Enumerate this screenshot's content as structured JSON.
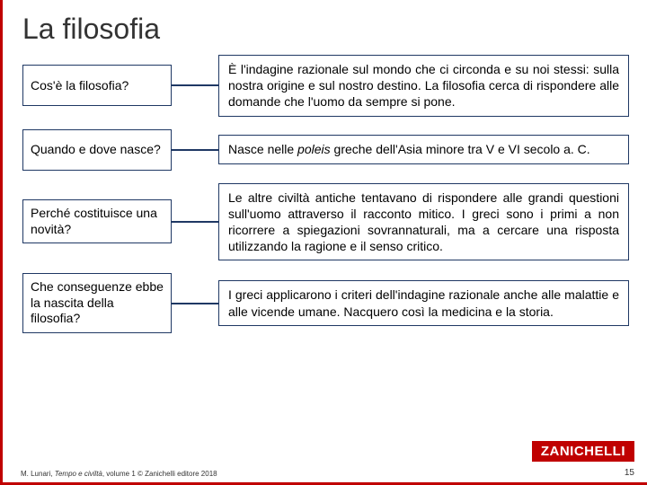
{
  "title": "La filosofia",
  "rows": [
    {
      "q": "Cos'è la filosofia?",
      "a": "È l'indagine razionale sul mondo che ci circonda e su noi stessi: sulla nostra origine e sul nostro destino. La filosofia cerca di rispondere alle domande che l'uomo da sempre si pone."
    },
    {
      "q": "Quando e dove nasce?",
      "a": "Nasce nelle <em>poleis</em> greche dell'Asia minore tra V e VI secolo a. C."
    },
    {
      "q": "Perché costituisce una novità?",
      "a": "Le altre civiltà antiche tentavano di rispondere alle grandi questioni sull'uomo attraverso il racconto mitico. I greci sono i primi a non ricorrere a spiegazioni sovrannaturali, ma a cercare una risposta utilizzando la ragione e il senso critico."
    },
    {
      "q": "Che conseguenze ebbe la nascita della filosofia?",
      "a": "I greci applicarono i criteri dell'indagine razionale anche alle malattie e alle vicende umane. Nacquero così la medicina e la storia."
    }
  ],
  "footer_author": "M. Lunari, ",
  "footer_title": "Tempo e civiltà",
  "footer_rest": ", volume 1 © Zanichelli editore 2018",
  "brand": "ZANICHELLI",
  "page_number": "15",
  "colors": {
    "accent": "#c00000",
    "box_border": "#1f3864",
    "text": "#000000",
    "title": "#333333",
    "background": "#ffffff"
  }
}
